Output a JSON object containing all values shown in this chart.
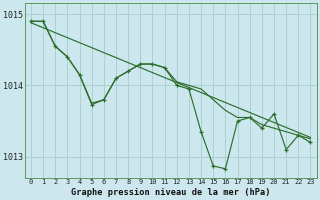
{
  "title": "Graphe pression niveau de la mer (hPa)",
  "bg_color": "#cce8ee",
  "grid_color": "#aacccc",
  "line_color": "#2d6e2d",
  "x_values": [
    0,
    1,
    2,
    3,
    4,
    5,
    6,
    7,
    8,
    9,
    10,
    11,
    12,
    13,
    14,
    15,
    16,
    17,
    18,
    19,
    20,
    21,
    22,
    23
  ],
  "trend_y": [
    1014.88,
    1014.81,
    1014.74,
    1014.67,
    1014.6,
    1014.53,
    1014.46,
    1014.39,
    1014.32,
    1014.25,
    1014.18,
    1014.11,
    1014.04,
    1013.97,
    1013.9,
    1013.83,
    1013.76,
    1013.69,
    1013.62,
    1013.55,
    1013.48,
    1013.41,
    1013.34,
    1013.27
  ],
  "smooth_y": [
    1014.9,
    1014.9,
    1014.55,
    1014.4,
    1014.15,
    1013.75,
    1013.8,
    1014.1,
    1014.2,
    1014.3,
    1014.3,
    1014.25,
    1014.05,
    1014.0,
    1013.95,
    1013.8,
    1013.65,
    1013.55,
    1013.55,
    1013.45,
    1013.4,
    1013.35,
    1013.3,
    1013.25
  ],
  "zigzag_y": [
    1014.9,
    1014.9,
    1014.55,
    1014.4,
    1014.15,
    1013.73,
    1013.8,
    1014.1,
    1014.2,
    1014.3,
    1014.3,
    1014.25,
    1014.0,
    1013.95,
    1013.35,
    1012.87,
    1012.83,
    1013.5,
    1013.55,
    1013.4,
    1013.6,
    1013.1,
    1013.3,
    1013.2
  ],
  "ylim": [
    1012.7,
    1015.15
  ],
  "yticks": [
    1013.0,
    1014.0,
    1015.0
  ],
  "figsize": [
    3.2,
    2.0
  ],
  "dpi": 100
}
